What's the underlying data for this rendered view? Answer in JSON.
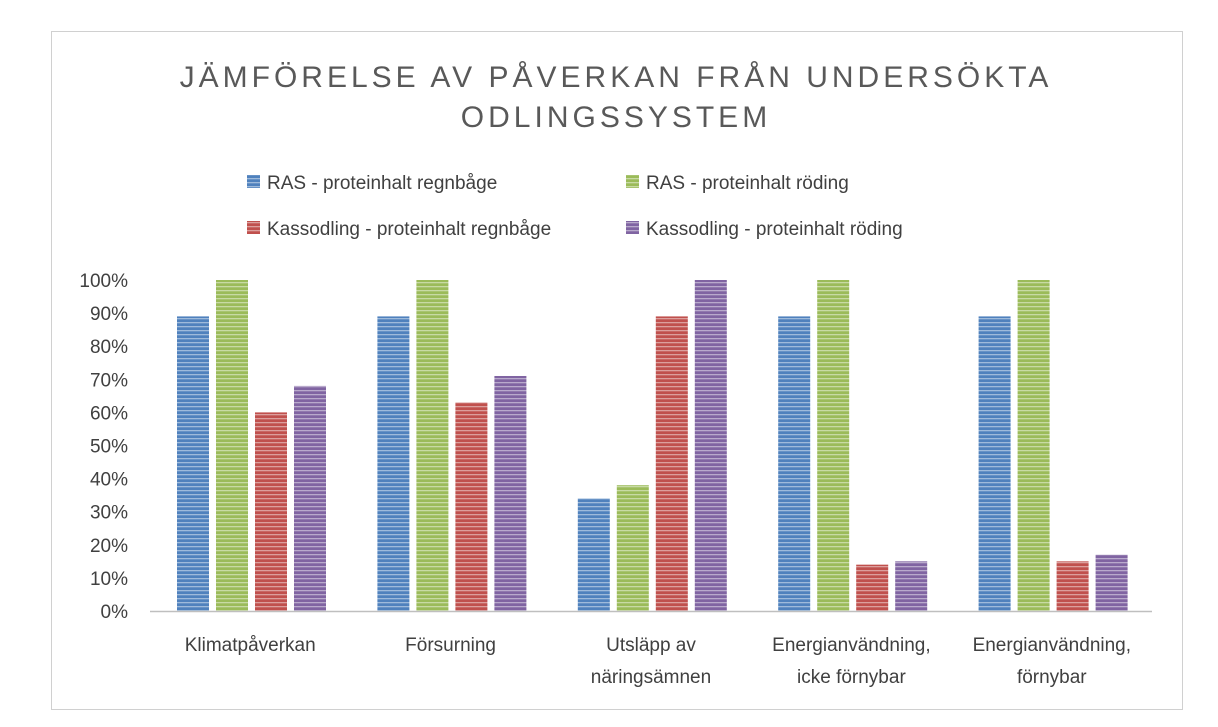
{
  "chart_data": {
    "type": "bar",
    "title": [
      "JÄMFÖRELSE AV PÅVERKAN FRÅN UNDERSÖKTA",
      "ODLINGSSYSTEM"
    ],
    "categories": [
      [
        "Klimatpåverkan"
      ],
      [
        "Försurning"
      ],
      [
        "Utsläpp av",
        "näringsämnen"
      ],
      [
        "Energianvändning,",
        "icke förnybar"
      ],
      [
        "Energianvändning,",
        "förnybar"
      ]
    ],
    "series": [
      {
        "name": "RAS - proteinhalt regnbåge",
        "color": "#4f81bd",
        "values": [
          0.89,
          0.89,
          0.34,
          0.89,
          0.89
        ]
      },
      {
        "name": "RAS - proteinhalt röding",
        "color": "#9bbb59",
        "values": [
          1.0,
          1.0,
          0.38,
          1.0,
          1.0
        ]
      },
      {
        "name": "Kassodling - proteinhalt regnbåge",
        "color": "#c0504d",
        "values": [
          0.6,
          0.63,
          0.89,
          0.14,
          0.15
        ]
      },
      {
        "name": "Kassodling - proteinhalt röding",
        "color": "#8064a2",
        "values": [
          0.68,
          0.71,
          1.0,
          0.15,
          0.17
        ]
      }
    ],
    "y_ticks": [
      "0%",
      "10%",
      "20%",
      "30%",
      "40%",
      "50%",
      "60%",
      "70%",
      "80%",
      "90%",
      "100%"
    ],
    "ylim": [
      0,
      1
    ],
    "grid": false,
    "legend_position": "top",
    "xlabel": "",
    "ylabel": ""
  }
}
